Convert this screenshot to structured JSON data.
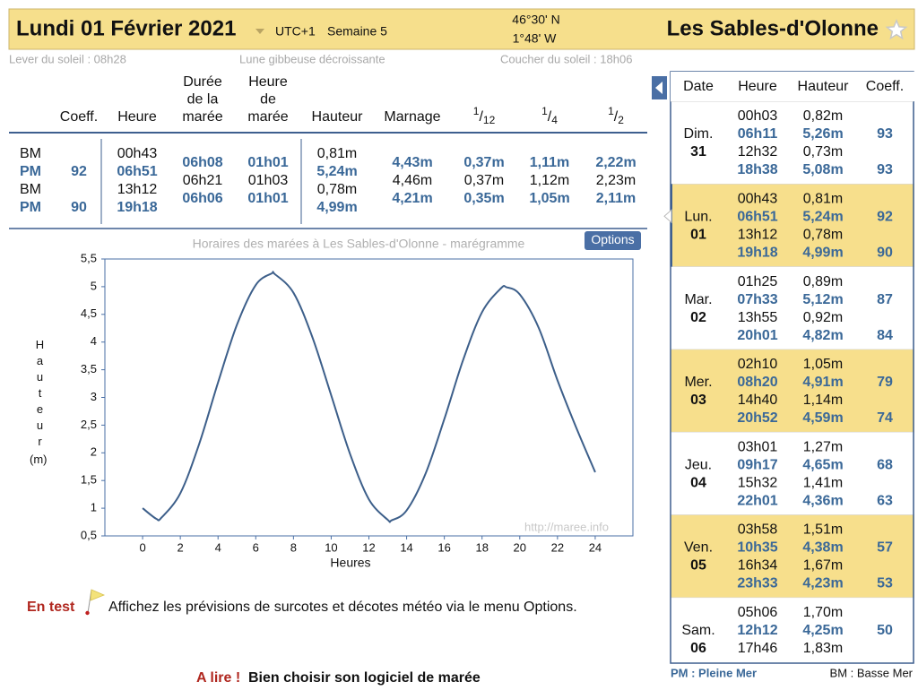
{
  "header": {
    "date": "Lundi 01 Février 2021",
    "timezone": "UTC+1",
    "week": "Semaine 5",
    "latitude": "46°30' N",
    "longitude": "1°48' W",
    "place": "Les Sables-d'Olonne"
  },
  "sun_moon": {
    "sunrise": "Lever du soleil : 08h28",
    "moon": "Lune gibbeuse décroissante",
    "sunset": "Coucher du soleil : 18h06"
  },
  "tide_table": {
    "headers": [
      [
        "Coeff."
      ],
      [
        "Heure"
      ],
      [
        "Durée",
        "de la",
        "marée"
      ],
      [
        "Heure",
        "de",
        "marée"
      ],
      [
        "Hauteur"
      ],
      [
        "Marnage"
      ]
    ],
    "fractions": [
      [
        "1",
        "/",
        "12"
      ],
      [
        "1",
        "/",
        "4"
      ],
      [
        "1",
        "/",
        "2"
      ]
    ],
    "tides": [
      {
        "type": "BM",
        "coeff": null,
        "time": "00h43",
        "height": "0,81m",
        "emphasis": false
      },
      {
        "type": "PM",
        "coeff": "92",
        "time": "06h51",
        "height": "5,24m",
        "emphasis": true
      },
      {
        "type": "BM",
        "coeff": null,
        "time": "13h12",
        "height": "0,78m",
        "emphasis": false
      },
      {
        "type": "PM",
        "coeff": "90",
        "time": "19h18",
        "height": "4,99m",
        "emphasis": true
      }
    ],
    "intervals": [
      {
        "duration": "06h08",
        "tide_hour": "01h01",
        "range": "4,43m",
        "fractions": [
          "0,37m",
          "1,11m",
          "2,22m"
        ],
        "emphasis": true
      },
      {
        "duration": "06h21",
        "tide_hour": "01h03",
        "range": "4,46m",
        "fractions": [
          "0,37m",
          "1,12m",
          "2,23m"
        ],
        "emphasis": false
      },
      {
        "duration": "06h06",
        "tide_hour": "01h01",
        "range": "4,21m",
        "fractions": [
          "0,35m",
          "1,05m",
          "2,11m"
        ],
        "emphasis": true
      }
    ]
  },
  "chart_data": {
    "type": "line",
    "title": "Horaires des marées à Les Sables-d'Olonne - marégramme",
    "options_button": "Options",
    "watermark": "http://maree.info",
    "x_label": "Heures",
    "y_label": "Hauteur",
    "y_unit": "(m)",
    "color": "#3d5f8a",
    "x": [
      0,
      0.72,
      1,
      2,
      3,
      4,
      5,
      6,
      6.85,
      7,
      8,
      9,
      10,
      11,
      12,
      13,
      13.2,
      14,
      15,
      16,
      17,
      18,
      19,
      19.3,
      20,
      21,
      22,
      23,
      24
    ],
    "values": [
      1.0,
      0.81,
      0.83,
      1.27,
      2.16,
      3.27,
      4.31,
      5.03,
      5.24,
      5.23,
      4.89,
      4.09,
      3.04,
      1.98,
      1.16,
      0.79,
      0.78,
      0.96,
      1.62,
      2.61,
      3.68,
      4.54,
      4.97,
      4.99,
      4.86,
      4.26,
      3.31,
      2.45,
      1.65
    ],
    "xlim": [
      -2,
      26
    ],
    "ylim": [
      0.5,
      5.5
    ],
    "xticks": [
      0,
      2,
      4,
      6,
      8,
      10,
      12,
      14,
      16,
      18,
      20,
      22,
      24
    ],
    "yticks": [
      {
        "value": 0.5,
        "label": "0,5"
      },
      1,
      {
        "value": 1.5,
        "label": "1,5"
      },
      2,
      {
        "value": 2.5,
        "label": "2,5"
      },
      3,
      {
        "value": 3.5,
        "label": "3,5"
      },
      4,
      {
        "value": 4.5,
        "label": "4,5"
      },
      5,
      {
        "value": 5.5,
        "label": "5,5"
      }
    ]
  },
  "tide_calendar": {
    "headers": [
      "Date",
      "Heure",
      "Hauteur",
      "Coeff."
    ],
    "days": [
      {
        "name": "Dim.",
        "number": "31",
        "highlight": false,
        "current": false,
        "tides": [
          {
            "time": "00h03",
            "height": "0,82m",
            "coeff": null,
            "emphasis": false
          },
          {
            "time": "06h11",
            "height": "5,26m",
            "coeff": "93",
            "emphasis": true
          },
          {
            "time": "12h32",
            "height": "0,73m",
            "coeff": null,
            "emphasis": false
          },
          {
            "time": "18h38",
            "height": "5,08m",
            "coeff": "93",
            "emphasis": true
          }
        ]
      },
      {
        "name": "Lun.",
        "number": "01",
        "highlight": true,
        "current": true,
        "tides": [
          {
            "time": "00h43",
            "height": "0,81m",
            "coeff": null,
            "emphasis": false
          },
          {
            "time": "06h51",
            "height": "5,24m",
            "coeff": "92",
            "emphasis": true
          },
          {
            "time": "13h12",
            "height": "0,78m",
            "coeff": null,
            "emphasis": false
          },
          {
            "time": "19h18",
            "height": "4,99m",
            "coeff": "90",
            "emphasis": true
          }
        ]
      },
      {
        "name": "Mar.",
        "number": "02",
        "highlight": false,
        "current": false,
        "tides": [
          {
            "time": "01h25",
            "height": "0,89m",
            "coeff": null,
            "emphasis": false
          },
          {
            "time": "07h33",
            "height": "5,12m",
            "coeff": "87",
            "emphasis": true
          },
          {
            "time": "13h55",
            "height": "0,92m",
            "coeff": null,
            "emphasis": false
          },
          {
            "time": "20h01",
            "height": "4,82m",
            "coeff": "84",
            "emphasis": true
          }
        ]
      },
      {
        "name": "Mer.",
        "number": "03",
        "highlight": true,
        "current": false,
        "tides": [
          {
            "time": "02h10",
            "height": "1,05m",
            "coeff": null,
            "emphasis": false
          },
          {
            "time": "08h20",
            "height": "4,91m",
            "coeff": "79",
            "emphasis": true
          },
          {
            "time": "14h40",
            "height": "1,14m",
            "coeff": null,
            "emphasis": false
          },
          {
            "time": "20h52",
            "height": "4,59m",
            "coeff": "74",
            "emphasis": true
          }
        ]
      },
      {
        "name": "Jeu.",
        "number": "04",
        "highlight": false,
        "current": false,
        "tides": [
          {
            "time": "03h01",
            "height": "1,27m",
            "coeff": null,
            "emphasis": false
          },
          {
            "time": "09h17",
            "height": "4,65m",
            "coeff": "68",
            "emphasis": true
          },
          {
            "time": "15h32",
            "height": "1,41m",
            "coeff": null,
            "emphasis": false
          },
          {
            "time": "22h01",
            "height": "4,36m",
            "coeff": "63",
            "emphasis": true
          }
        ]
      },
      {
        "name": "Ven.",
        "number": "05",
        "highlight": true,
        "current": false,
        "tides": [
          {
            "time": "03h58",
            "height": "1,51m",
            "coeff": null,
            "emphasis": false
          },
          {
            "time": "10h35",
            "height": "4,38m",
            "coeff": "57",
            "emphasis": true
          },
          {
            "time": "16h34",
            "height": "1,67m",
            "coeff": null,
            "emphasis": false
          },
          {
            "time": "23h33",
            "height": "4,23m",
            "coeff": "53",
            "emphasis": true
          }
        ]
      },
      {
        "name": "Sam.",
        "number": "06",
        "highlight": false,
        "current": false,
        "tides": [
          {
            "time": "05h06",
            "height": "1,70m",
            "coeff": null,
            "emphasis": false
          },
          {
            "time": "12h12",
            "height": "4,25m",
            "coeff": "50",
            "emphasis": true
          },
          {
            "time": "17h46",
            "height": "1,83m",
            "coeff": null,
            "emphasis": false
          }
        ]
      }
    ],
    "legend": {
      "pm": "PM : Pleine Mer",
      "bm": "BM : Basse Mer"
    }
  },
  "notice": {
    "badge": "En test",
    "text": "Affichez les prévisions de surcotes et décotes météo via le menu Options."
  },
  "footer_link": {
    "label": "A lire !",
    "text": "Bien choisir son logiciel de marée"
  }
}
